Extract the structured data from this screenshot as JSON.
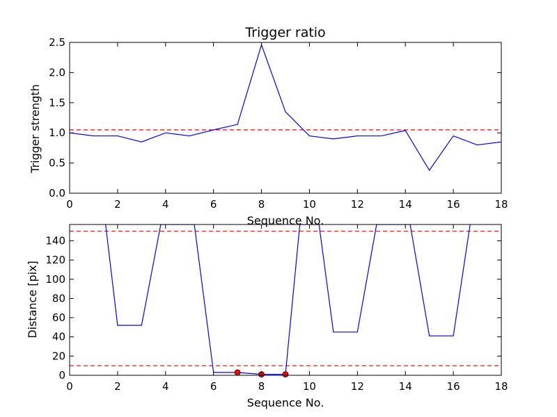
{
  "chart_data": [
    {
      "type": "line",
      "title": "Trigger ratio",
      "xlabel": "Sequence No.",
      "ylabel": "Trigger strength",
      "xlim": [
        0,
        18
      ],
      "ylim": [
        0,
        2.5
      ],
      "xticks": [
        0,
        2,
        4,
        6,
        8,
        10,
        12,
        14,
        16,
        18
      ],
      "yticks": [
        0.0,
        0.5,
        1.0,
        1.5,
        2.0,
        2.5
      ],
      "ytick_labels": [
        "0.0",
        "0.5",
        "1.0",
        "1.5",
        "2.0",
        "2.5"
      ],
      "grid": false,
      "series": [
        {
          "color": "#0000ff",
          "x": [
            0,
            1,
            2,
            3,
            4,
            5,
            6,
            7,
            8,
            9,
            10,
            11,
            12,
            13,
            14,
            15,
            16,
            17,
            18
          ],
          "y": [
            1.0,
            0.95,
            0.95,
            0.85,
            1.0,
            0.95,
            1.05,
            1.14,
            2.46,
            1.35,
            0.95,
            0.9,
            0.95,
            0.95,
            1.04,
            0.38,
            0.95,
            0.8,
            0.85
          ]
        }
      ],
      "hlines": [
        {
          "y": 1.05,
          "color": "#ff0000",
          "style": "dashed"
        }
      ]
    },
    {
      "type": "line",
      "title": "",
      "xlabel": "Sequence No.",
      "ylabel": "Distance [pix]",
      "xlim": [
        0,
        18
      ],
      "ylim": [
        0,
        157
      ],
      "xticks": [
        0,
        2,
        4,
        6,
        8,
        10,
        12,
        14,
        16,
        18
      ],
      "yticks": [
        0,
        20,
        40,
        60,
        80,
        100,
        120,
        140
      ],
      "ytick_labels": [
        "0",
        "20",
        "40",
        "60",
        "80",
        "100",
        "120",
        "140"
      ],
      "grid": false,
      "series": [
        {
          "color": "#0000ff",
          "x": [
            1.5,
            2,
            3,
            3.8,
            5.2,
            6,
            7,
            8,
            9,
            9.6,
            10.4,
            11,
            12,
            12.8,
            14.2,
            15,
            16,
            16.7
          ],
          "y": [
            157,
            52,
            52,
            157,
            157,
            3,
            3,
            1,
            1,
            157,
            157,
            45,
            45,
            157,
            157,
            41,
            41,
            157
          ]
        }
      ],
      "markers": [
        {
          "x": 7,
          "y": 3,
          "color": "#ff0000"
        },
        {
          "x": 8,
          "y": 1,
          "color": "#ff0000"
        },
        {
          "x": 9,
          "y": 1,
          "color": "#ff0000"
        }
      ],
      "hlines": [
        {
          "y": 150,
          "color": "#ff0000",
          "style": "dashed"
        },
        {
          "y": 10,
          "color": "#ff0000",
          "style": "dashed"
        }
      ]
    }
  ]
}
